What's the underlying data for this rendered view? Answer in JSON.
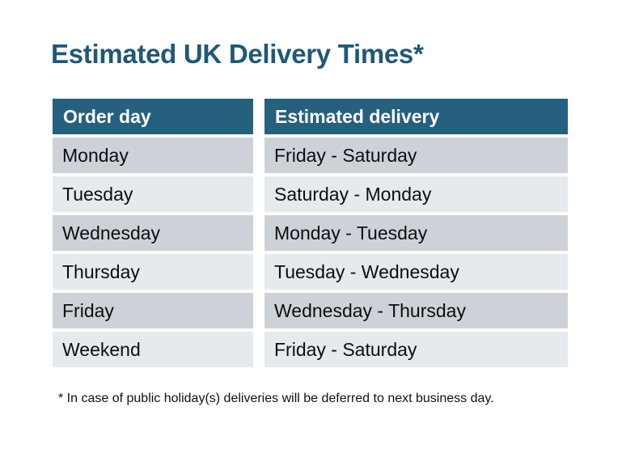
{
  "page": {
    "title": "Estimated UK Delivery Times*"
  },
  "table": {
    "headers": [
      "Order day",
      "Estimated delivery"
    ],
    "rows": [
      {
        "order_day": "Monday",
        "estimated_delivery": "Friday - Saturday"
      },
      {
        "order_day": "Tuesday",
        "estimated_delivery": "Saturday - Monday"
      },
      {
        "order_day": "Wednesday",
        "estimated_delivery": "Monday - Tuesday"
      },
      {
        "order_day": "Thursday",
        "estimated_delivery": "Tuesday - Wednesday"
      },
      {
        "order_day": "Friday",
        "estimated_delivery": "Wednesday - Thursday"
      },
      {
        "order_day": "Weekend",
        "estimated_delivery": "Friday - Saturday"
      }
    ]
  },
  "footnote": "* In case of public holiday(s) deliveries will be deferred to next business day.",
  "colors": {
    "title_text": "#1F5878",
    "header_bg": "#25607F",
    "header_text": "#FFFFFF",
    "row_dark": "#CDD2D9",
    "row_light": "#E6EAED",
    "body_text": "#0D0D0D",
    "background": "#FFFFFF"
  },
  "chart_data": {
    "type": "table",
    "title": "Estimated UK Delivery Times*",
    "columns": [
      "Order day",
      "Estimated delivery"
    ],
    "rows": [
      [
        "Monday",
        "Friday - Saturday"
      ],
      [
        "Tuesday",
        "Saturday - Monday"
      ],
      [
        "Wednesday",
        "Monday - Tuesday"
      ],
      [
        "Thursday",
        "Tuesday - Wednesday"
      ],
      [
        "Friday",
        "Wednesday - Thursday"
      ],
      [
        "Weekend",
        "Friday - Saturday"
      ]
    ],
    "footnote": "* In case of public holiday(s) deliveries will be deferred to next business day.",
    "layout_hints": {
      "header_style": "dark-teal band, white bold text",
      "row_striping": "alternating gray (dark, light) starting dark",
      "cell_gaps": "white gaps between all rows and between the two columns"
    }
  }
}
